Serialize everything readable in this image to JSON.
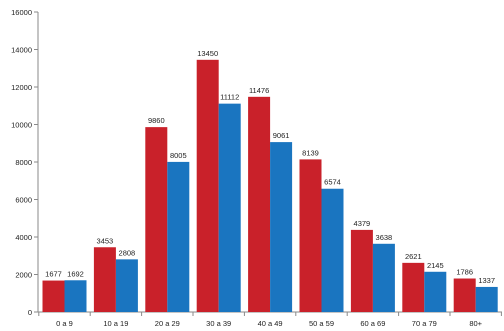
{
  "chart_data": {
    "type": "bar",
    "categories": [
      "0 a 9",
      "10 a 19",
      "20 a 29",
      "30 a 39",
      "40 a 49",
      "50 a 59",
      "60 a 69",
      "70 a 79",
      "80+"
    ],
    "series": [
      {
        "values": [
          1677,
          3453,
          9860,
          13450,
          11476,
          8139,
          4379,
          2621,
          1786
        ],
        "color": "#c9212a"
      },
      {
        "values": [
          1692,
          2808,
          8005,
          11112,
          9061,
          6574,
          3638,
          2145,
          1337
        ],
        "color": "#1a75c0"
      }
    ],
    "y_ticks": [
      "0",
      "2000",
      "4000",
      "6000",
      "8000",
      "10000",
      "12000",
      "14000",
      "16000"
    ],
    "ylim": [
      0,
      16000
    ],
    "grid": false,
    "legend": "none",
    "data_labels": true
  }
}
